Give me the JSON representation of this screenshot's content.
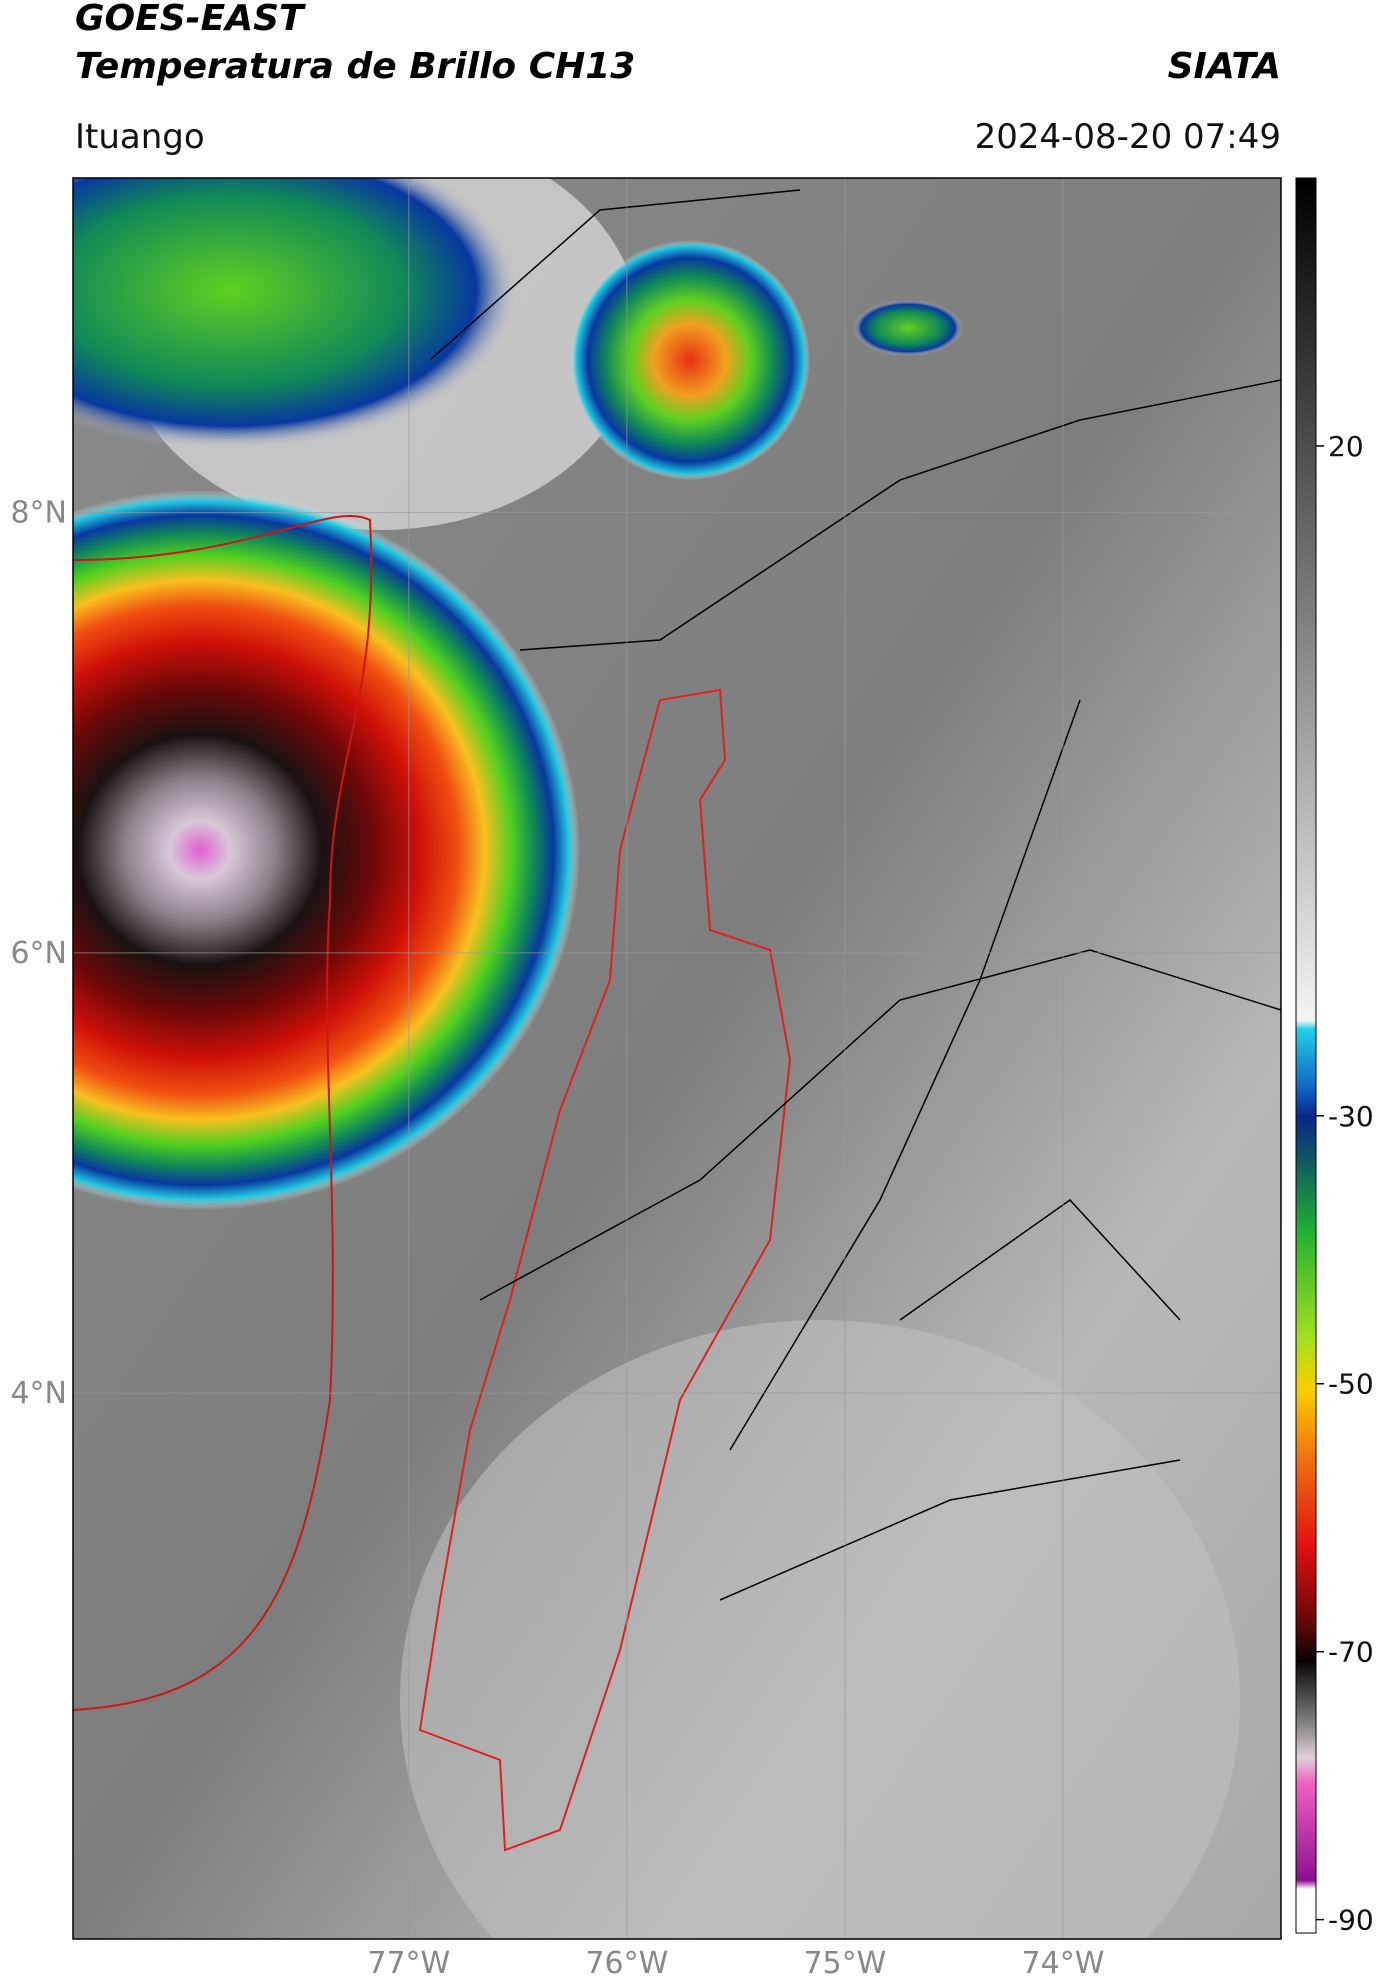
{
  "header": {
    "title_line1": "GOES-EAST",
    "title_line2": "Temperatura de Brillo CH13",
    "brand": "SIATA",
    "location": "Ituango",
    "datetime": "2024-08-20 07:49"
  },
  "map": {
    "lat_lim": [
      1.52,
      9.52
    ],
    "lon_lim": [
      -78.54,
      -73.0
    ],
    "lat_ticks": [
      {
        "value": 8,
        "label": "8°N"
      },
      {
        "value": 6,
        "label": "6°N"
      },
      {
        "value": 4,
        "label": "4°N"
      }
    ],
    "lon_ticks": [
      {
        "value": -77,
        "label": "77°W"
      },
      {
        "value": -76,
        "label": "76°W"
      },
      {
        "value": -75,
        "label": "75°W"
      },
      {
        "value": -74,
        "label": "74°W"
      }
    ]
  },
  "colorbar": {
    "vlim": [
      -91,
      40
    ],
    "ticks": [
      20,
      -30,
      -50,
      -70,
      -90
    ]
  }
}
